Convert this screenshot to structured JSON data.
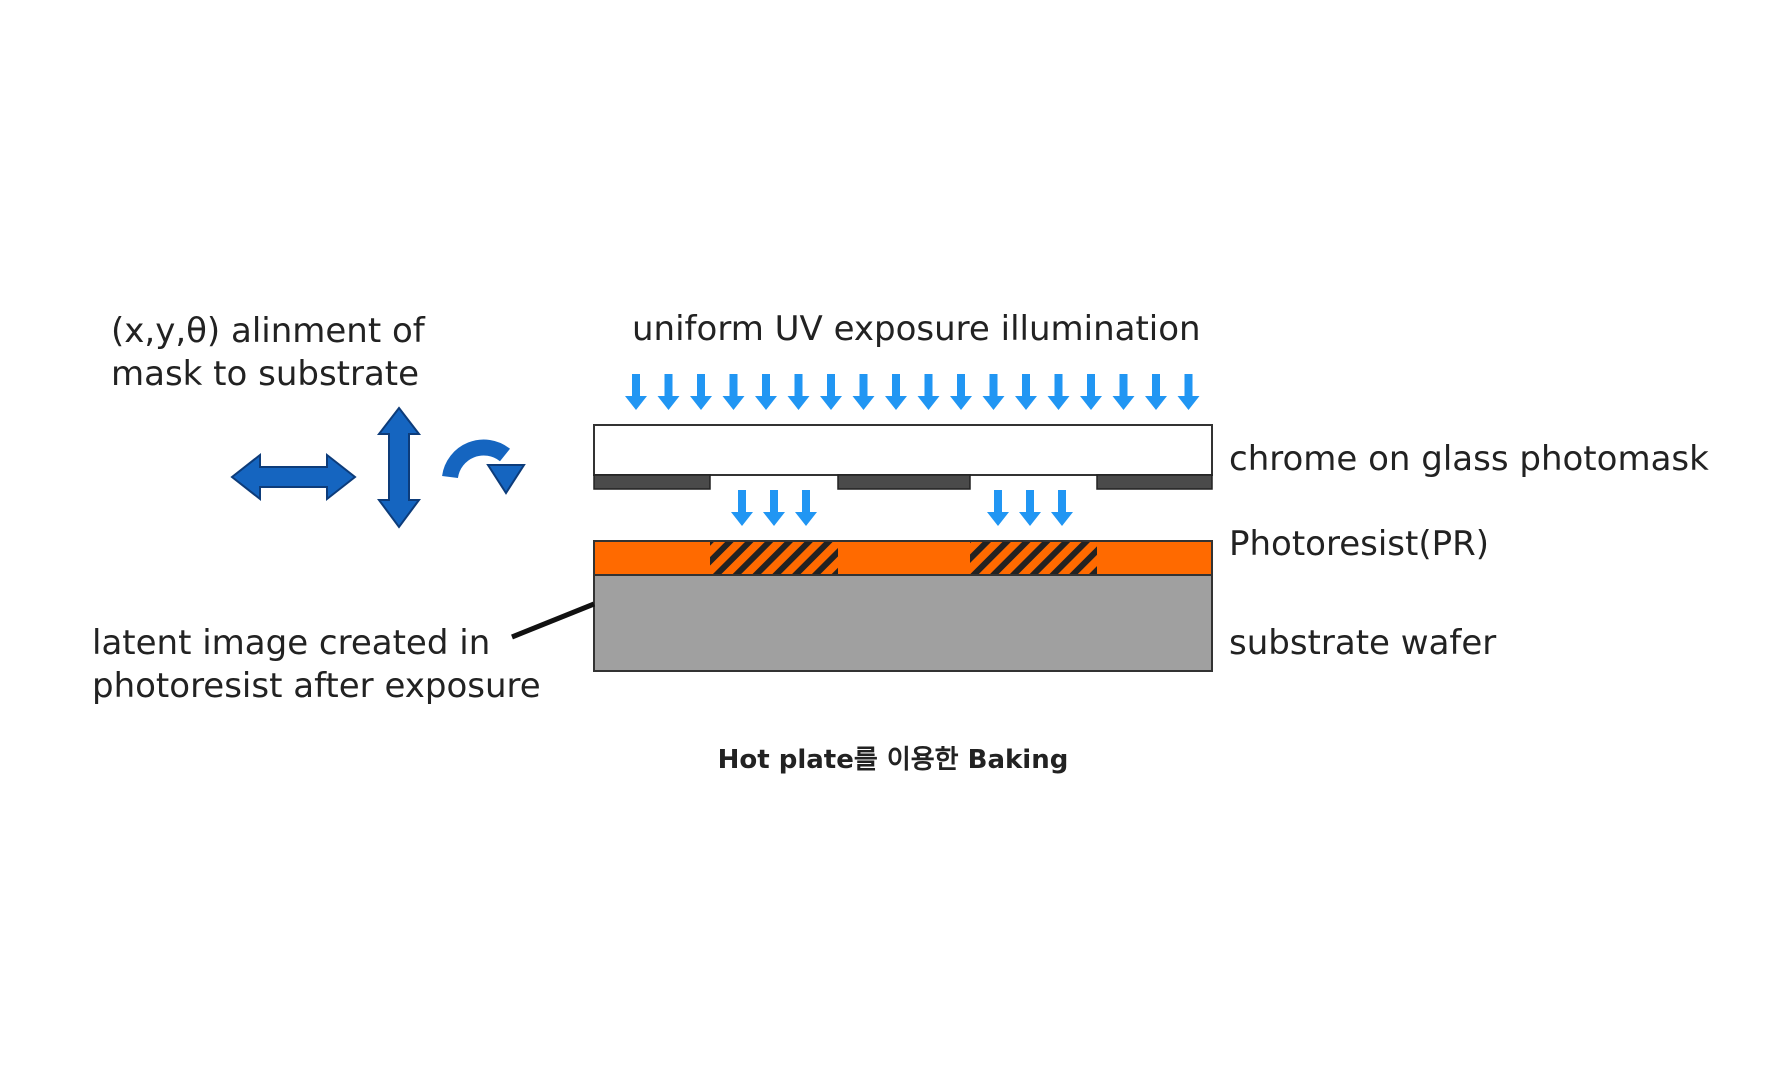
{
  "labels": {
    "alignment_line1": "(x,y,θ) alinment of",
    "alignment_line2": "mask to substrate",
    "uv_title": "uniform UV exposure illumination",
    "photomask": "chrome on glass photomask",
    "photoresist": "Photoresist(PR)",
    "substrate": "substrate wafer",
    "latent_line1": "latent image created in",
    "latent_line2": "photoresist after exposure"
  },
  "caption": "Hot plate를 이용한 Baking",
  "colors": {
    "uv_arrow": "#2196F3",
    "motion_arrow": "#1565C0",
    "photoresist": "#FF6A00",
    "substrate": "#A0A0A0",
    "chrome": "#4A4A4A",
    "hatch": "#222222",
    "text": "#222222"
  },
  "icons": {
    "horizontal": "double-horizontal-arrow-icon",
    "vertical": "double-vertical-arrow-icon",
    "rotation": "rotation-arrow-icon"
  },
  "uv_arrow_count_top": 18,
  "uv_arrow_count_per_opening": 3
}
